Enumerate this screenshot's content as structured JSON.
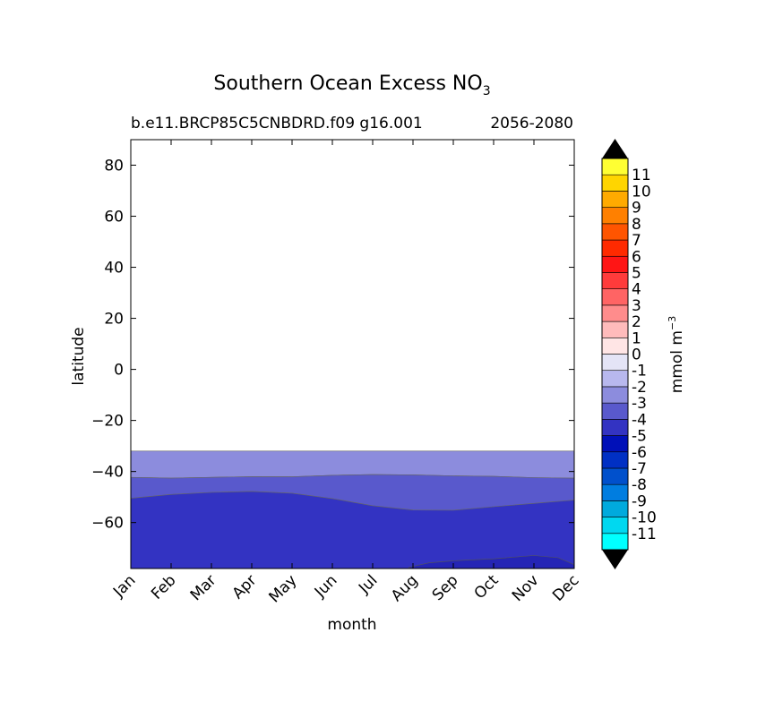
{
  "chart_data": {
    "type": "heatmap",
    "title": "Southern Ocean Excess NO",
    "title_subscript": "3",
    "subtitle_left": "b.e11.BRCP85C5CNBDRD.f09 g16.001",
    "subtitle_right": "2056-2080",
    "xlabel": "month",
    "ylabel": "latitude",
    "x_categories": [
      "Jan",
      "Feb",
      "Mar",
      "Apr",
      "May",
      "Jun",
      "Jul",
      "Aug",
      "Sep",
      "Oct",
      "Nov",
      "Dec"
    ],
    "yticks": [
      80,
      60,
      40,
      20,
      0,
      -20,
      -40,
      -60
    ],
    "ytick_labels": [
      "80",
      "60",
      "40",
      "20",
      "0",
      "−20",
      "−40",
      "−60"
    ],
    "ylim": [
      -78,
      90
    ],
    "grid": false,
    "colorbar": {
      "label": "mmol m",
      "label_superscript": "−3",
      "levels": [
        -12,
        -11,
        -10,
        -9,
        -8,
        -7,
        -6,
        -5,
        -4,
        -3,
        -2,
        -1,
        0,
        1,
        2,
        3,
        4,
        5,
        6,
        7,
        8,
        9,
        10,
        11,
        12
      ],
      "tick_labels": [
        "11",
        "10",
        "9",
        "8",
        "7",
        "6",
        "5",
        "4",
        "3",
        "2",
        "1",
        "0",
        "-1",
        "-2",
        "-3",
        "-4",
        "-5",
        "-6",
        "-7",
        "-8",
        "-9",
        "-10",
        "-11"
      ],
      "tick_values": [
        11,
        10,
        9,
        8,
        7,
        6,
        5,
        4,
        3,
        2,
        1,
        0,
        -1,
        -2,
        -3,
        -4,
        -5,
        -6,
        -7,
        -8,
        -9,
        -10,
        -11
      ],
      "colors": [
        "#00ffff",
        "#00d8f0",
        "#00aadd",
        "#007de0",
        "#0050cc",
        "#0030c4",
        "#0010b8",
        "#3333c2",
        "#5959cc",
        "#8c8cdd",
        "#b8b8ee",
        "#e4e4f6",
        "#ffe5e5",
        "#ffbbbb",
        "#ff8c8c",
        "#ff6464",
        "#ff3b3b",
        "#ff1515",
        "#ff2a00",
        "#ff5500",
        "#ff8000",
        "#ffaa00",
        "#ffd500",
        "#ffff33"
      ],
      "extend_colors": [
        "#000000",
        "#000000"
      ]
    },
    "series": [
      {
        "level": "-1",
        "color": "#b8b8ee",
        "north_edge": [
          -34.5,
          -34.5,
          -34.5,
          -34.5,
          -34.5,
          -34.5,
          -34.5,
          -34.5,
          -34.5,
          -34.5,
          -34.5,
          -34.5
        ],
        "south_edge": [
          -37.2,
          -37.5,
          -37.6,
          -37.3,
          -37.0,
          -36.4,
          -35.9,
          -35.6,
          -35.6,
          -36.0,
          -36.6,
          -37.2
        ]
      },
      {
        "level": "-2",
        "color": "#8c8cdd",
        "north_edge": [
          -32,
          -32,
          -32,
          -32,
          -32,
          -32,
          -32,
          -32,
          -32,
          -32,
          -32,
          -32
        ],
        "south_edge": [
          -42.3,
          -42.6,
          -42.3,
          -42.0,
          -42.1,
          -41.5,
          -41.2,
          -41.3,
          -41.7,
          -41.9,
          -42.4,
          -42.6
        ]
      },
      {
        "level": "-3",
        "color": "#5959cc",
        "north_edge": [
          -42.3,
          -42.6,
          -42.3,
          -42.0,
          -42.1,
          -41.5,
          -41.2,
          -41.3,
          -41.7,
          -41.9,
          -42.4,
          -42.6
        ],
        "south_edge": [
          -50.5,
          -49.0,
          -48.2,
          -47.8,
          -48.5,
          -50.6,
          -53.4,
          -55.1,
          -55.2,
          -53.8,
          -52.5,
          -51.2
        ]
      },
      {
        "level": "-4",
        "color": "#3333c2",
        "north_edge": [
          -50.5,
          -49.0,
          -48.2,
          -47.8,
          -48.5,
          -50.6,
          -53.4,
          -55.1,
          -55.2,
          -53.8,
          -52.5,
          -51.2
        ],
        "south_edge": [
          -78,
          -78,
          -78,
          -78,
          -78,
          -78,
          -78,
          -78,
          -78,
          -78,
          -78,
          -78
        ]
      }
    ],
    "deep_band_note": "",
    "deep_band": {
      "color": "#2525b5",
      "x": [
        6.9,
        7.4,
        8.0,
        9.0,
        10.0,
        10.6,
        11.0
      ],
      "lat": [
        -77.5,
        -75.8,
        -75.0,
        -74.2,
        -72.9,
        -73.8,
        -76.5
      ]
    }
  }
}
